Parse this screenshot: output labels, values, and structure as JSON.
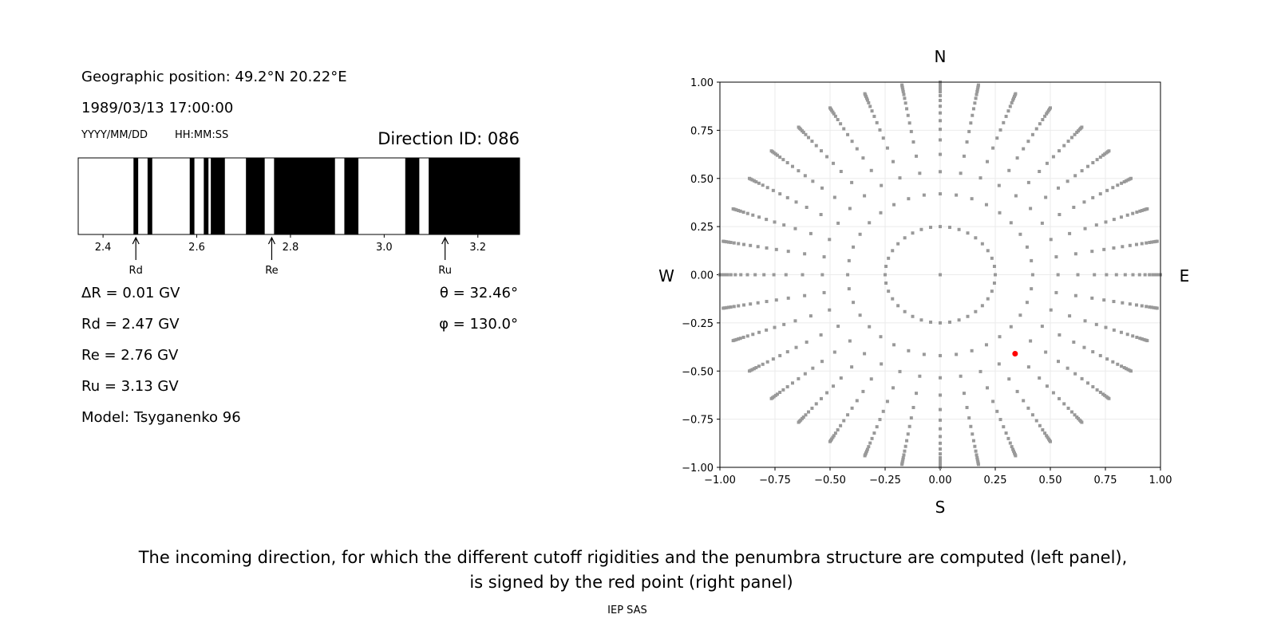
{
  "left_panel": {
    "geo_position": "Geographic position: 49.2°N 20.22°E",
    "datetime": "1989/03/13 17:00:00",
    "date_format": "YYYY/MM/DD",
    "time_format": "HH:MM:SS",
    "direction_id": "Direction ID: 086",
    "delta_r": "ΔR = 0.01 GV",
    "rd": "Rd = 2.47 GV",
    "re": "Re = 2.76 GV",
    "ru": "Ru = 3.13 GV",
    "model": "Model: Tsyganenko 96",
    "theta": "θ = 32.46°",
    "phi": "φ = 130.0°"
  },
  "chart_data": [
    {
      "type": "bar",
      "xlim": [
        2.347,
        3.289
      ],
      "xticks": [
        2.4,
        2.6,
        2.8,
        3.0,
        3.2
      ],
      "xtick_labels": [
        "2.4",
        "2.6",
        "2.8",
        "3.0",
        "3.2"
      ],
      "forbidden_color": "#000000",
      "allowed_color": "#ffffff",
      "forbidden_intervals": [
        [
          2.465,
          2.475
        ],
        [
          2.495,
          2.505
        ],
        [
          2.585,
          2.595
        ],
        [
          2.615,
          2.625
        ],
        [
          2.63,
          2.66
        ],
        [
          2.705,
          2.745
        ],
        [
          2.765,
          2.895
        ],
        [
          2.915,
          2.945
        ],
        [
          3.045,
          3.075
        ],
        [
          3.095,
          3.289
        ]
      ],
      "markers": [
        {
          "label": "Rd",
          "value": 2.47
        },
        {
          "label": "Re",
          "value": 2.76
        },
        {
          "label": "Ru",
          "value": 3.13
        }
      ]
    },
    {
      "type": "scatter",
      "xlim": [
        -1,
        1
      ],
      "ylim": [
        -1,
        1
      ],
      "ticks": [
        -1,
        -0.75,
        -0.5,
        -0.25,
        0,
        0.25,
        0.5,
        0.75,
        1
      ],
      "tick_labels": [
        "−1.00",
        "−0.75",
        "−0.50",
        "−0.25",
        "0.00",
        "0.25",
        "0.50",
        "0.75",
        "1.00"
      ],
      "grid": true,
      "compass": {
        "north": "N",
        "south": "S",
        "west": "W",
        "east": "E"
      },
      "grid_points": {
        "color": "#999999",
        "center": [
          0,
          0
        ],
        "azimuth_step_deg": 10,
        "inner_ring_radius": 0.25,
        "spoke_radii": [
          0.42,
          0.535,
          0.625,
          0.7,
          0.755,
          0.8,
          0.84,
          0.875,
          0.905,
          0.93,
          0.95,
          0.965,
          0.975,
          0.985,
          0.993,
          1.0
        ]
      },
      "selected_point": {
        "x": 0.34,
        "y": -0.41,
        "color": "#ff0000"
      }
    }
  ],
  "caption": {
    "line1": "The incoming direction, for which the different cutoff rigidities and the penumbra structure are computed (left panel),",
    "line2": "is signed by the red point (right panel)",
    "credit": "IEP SAS"
  }
}
